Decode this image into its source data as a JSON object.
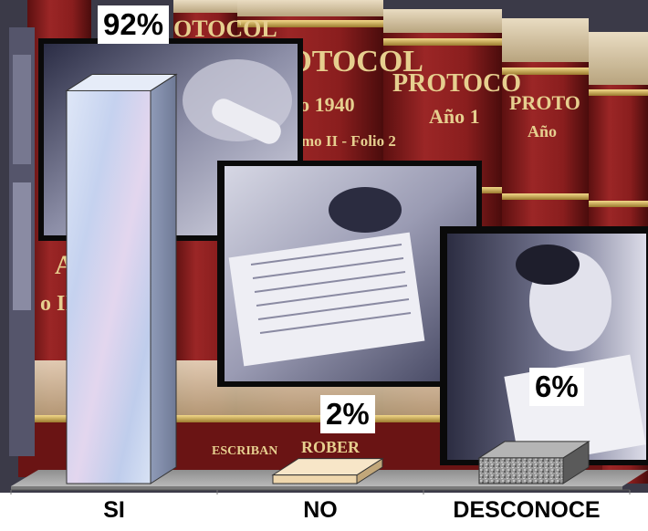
{
  "chart_data": {
    "type": "bar",
    "categories": [
      "SI",
      "NO",
      "DESCONOCE"
    ],
    "values": [
      92,
      2,
      6
    ],
    "value_labels": [
      "92%",
      "2%",
      "6%"
    ],
    "title": "",
    "xlabel": "",
    "ylabel": "",
    "ylim": [
      0,
      100
    ],
    "grid": false,
    "legend": "none",
    "bar_styles": [
      "light-blue-marble",
      "beige",
      "gray-granite"
    ],
    "background": "collage of bound PROTOCOLO volumes and photographs of scribes",
    "colors": {
      "bar_si": "#c9d6f0",
      "bar_no": "#efd7ad",
      "bar_desconoce": "#9a9a9a",
      "binding_red": "#8e1f1f",
      "floor": "#a9a9a9"
    }
  },
  "background_text": {
    "spine_1_title": "PROTOCOL",
    "spine_1_year": "Año 1940",
    "spine_1_volume": "mo II - Folio 2",
    "spine_2_title": "PROTOCO",
    "spine_2_year": "Año 1",
    "spine_3_title": "PROTO",
    "spine_3_year": "Año",
    "spine_left_top": "OTOCOL",
    "spine_left_mid": "A",
    "spine_left_low": "o II",
    "bottom_escriban": "ESCRIBAN",
    "bottom_rober": "ROBER"
  }
}
